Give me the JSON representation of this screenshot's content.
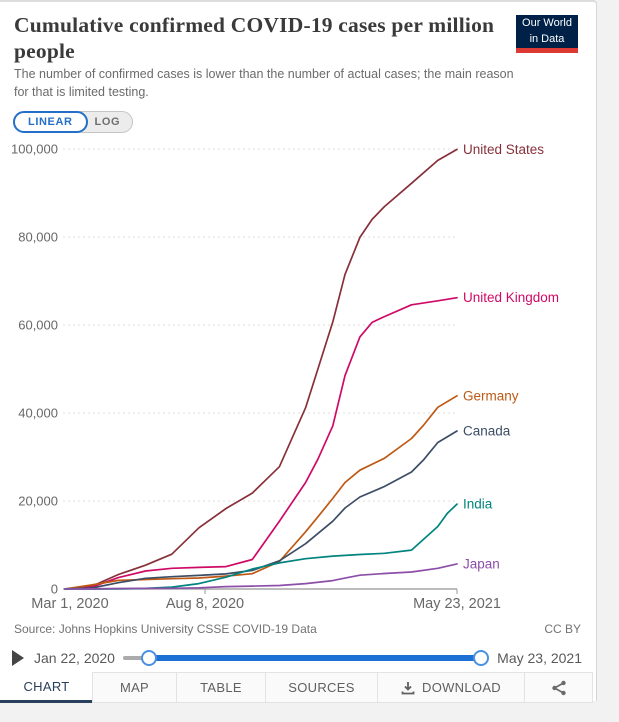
{
  "header": {
    "title": "Cumulative confirmed COVID-19 cases per million people",
    "subtitle": "The number of confirmed cases is lower than the number of actual cases; the main reason for that is limited testing.",
    "logo": {
      "line1": "Our World",
      "line2": "in Data",
      "bg_color": "#002147",
      "accent_color": "#dc3a32"
    }
  },
  "controls": {
    "linear_label": "LINEAR",
    "log_label": "LOG",
    "selected": "LINEAR",
    "active_color": "#2470c8"
  },
  "chart_data": {
    "type": "line",
    "title": "Cumulative confirmed COVID-19 cases per million people",
    "xlabel": "",
    "ylabel": "",
    "x_unit": "days since Mar 1, 2020",
    "x_range_days": [
      0,
      448
    ],
    "ylim": [
      0,
      100000
    ],
    "grid": "horizontal-dashed",
    "legend_position": "line-end-labels",
    "yticks": [
      0,
      20000,
      40000,
      60000,
      80000,
      100000
    ],
    "ytick_labels": [
      "0",
      "20,000",
      "40,000",
      "60,000",
      "80,000",
      "100,000"
    ],
    "xticks_days": [
      0,
      160,
      448
    ],
    "xtick_labels": [
      "Mar 1, 2020",
      "Aug 8, 2020",
      "May 23, 2021"
    ],
    "series": [
      {
        "name": "United States",
        "color": "#883039",
        "points": [
          [
            0,
            0
          ],
          [
            31,
            650
          ],
          [
            61,
            3300
          ],
          [
            92,
            5400
          ],
          [
            122,
            7900
          ],
          [
            153,
            13900
          ],
          [
            184,
            18300
          ],
          [
            214,
            21800
          ],
          [
            245,
            27800
          ],
          [
            275,
            41200
          ],
          [
            289,
            50000
          ],
          [
            306,
            60700
          ],
          [
            320,
            71500
          ],
          [
            337,
            79900
          ],
          [
            351,
            84000
          ],
          [
            365,
            86900
          ],
          [
            396,
            92200
          ],
          [
            426,
            97400
          ],
          [
            448,
            99900
          ]
        ]
      },
      {
        "name": "United Kingdom",
        "color": "#cf0a66",
        "points": [
          [
            0,
            0
          ],
          [
            31,
            440
          ],
          [
            61,
            2600
          ],
          [
            92,
            4100
          ],
          [
            122,
            4700
          ],
          [
            153,
            4900
          ],
          [
            184,
            5100
          ],
          [
            214,
            6700
          ],
          [
            245,
            15400
          ],
          [
            275,
            24200
          ],
          [
            289,
            29500
          ],
          [
            306,
            37100
          ],
          [
            320,
            48500
          ],
          [
            337,
            57300
          ],
          [
            351,
            60600
          ],
          [
            365,
            61900
          ],
          [
            396,
            64600
          ],
          [
            426,
            65500
          ],
          [
            448,
            66200
          ]
        ]
      },
      {
        "name": "Germany",
        "color": "#be5915",
        "points": [
          [
            0,
            1
          ],
          [
            31,
            930
          ],
          [
            61,
            1950
          ],
          [
            92,
            2170
          ],
          [
            122,
            2330
          ],
          [
            153,
            2500
          ],
          [
            184,
            2940
          ],
          [
            214,
            3470
          ],
          [
            245,
            6250
          ],
          [
            275,
            13000
          ],
          [
            289,
            16400
          ],
          [
            306,
            20600
          ],
          [
            320,
            24200
          ],
          [
            337,
            27000
          ],
          [
            365,
            29700
          ],
          [
            396,
            34200
          ],
          [
            410,
            37300
          ],
          [
            426,
            41300
          ],
          [
            448,
            43900
          ]
        ]
      },
      {
        "name": "Canada",
        "color": "#3c4e66",
        "points": [
          [
            0,
            1
          ],
          [
            31,
            230
          ],
          [
            61,
            1440
          ],
          [
            92,
            2440
          ],
          [
            122,
            2790
          ],
          [
            153,
            3080
          ],
          [
            184,
            3440
          ],
          [
            214,
            4230
          ],
          [
            245,
            6420
          ],
          [
            275,
            10300
          ],
          [
            306,
            15400
          ],
          [
            320,
            18400
          ],
          [
            337,
            20900
          ],
          [
            365,
            23300
          ],
          [
            396,
            26600
          ],
          [
            410,
            29400
          ],
          [
            426,
            33300
          ],
          [
            448,
            35900
          ]
        ]
      },
      {
        "name": "India",
        "color": "#00847e",
        "points": [
          [
            0,
            0
          ],
          [
            31,
            1
          ],
          [
            61,
            25
          ],
          [
            92,
            140
          ],
          [
            122,
            430
          ],
          [
            153,
            1230
          ],
          [
            184,
            2680
          ],
          [
            214,
            4550
          ],
          [
            245,
            5940
          ],
          [
            275,
            6880
          ],
          [
            306,
            7470
          ],
          [
            337,
            7830
          ],
          [
            365,
            8120
          ],
          [
            396,
            8850
          ],
          [
            426,
            14200
          ],
          [
            437,
            17200
          ],
          [
            448,
            19300
          ]
        ]
      },
      {
        "name": "Japan",
        "color": "#8c4fa8",
        "points": [
          [
            0,
            2
          ],
          [
            31,
            17
          ],
          [
            61,
            115
          ],
          [
            92,
            133
          ],
          [
            122,
            150
          ],
          [
            153,
            280
          ],
          [
            184,
            540
          ],
          [
            214,
            660
          ],
          [
            245,
            790
          ],
          [
            275,
            1230
          ],
          [
            306,
            1900
          ],
          [
            320,
            2470
          ],
          [
            337,
            3140
          ],
          [
            365,
            3520
          ],
          [
            396,
            3870
          ],
          [
            426,
            4700
          ],
          [
            448,
            5700
          ]
        ]
      }
    ]
  },
  "footer": {
    "source": "Source: Johns Hopkins University CSSE COVID-19 Data",
    "license": "CC BY"
  },
  "timeline": {
    "start_label": "Jan 22, 2020",
    "end_label": "May 23, 2021",
    "track_color": "#1d70d6"
  },
  "tabs": [
    {
      "label": "CHART",
      "active": true
    },
    {
      "label": "MAP",
      "active": false
    },
    {
      "label": "TABLE",
      "active": false
    },
    {
      "label": "SOURCES",
      "active": false
    },
    {
      "label": "DOWNLOAD",
      "active": false,
      "icon": "download-icon"
    },
    {
      "label": "",
      "active": false,
      "icon": "share-icon"
    }
  ]
}
